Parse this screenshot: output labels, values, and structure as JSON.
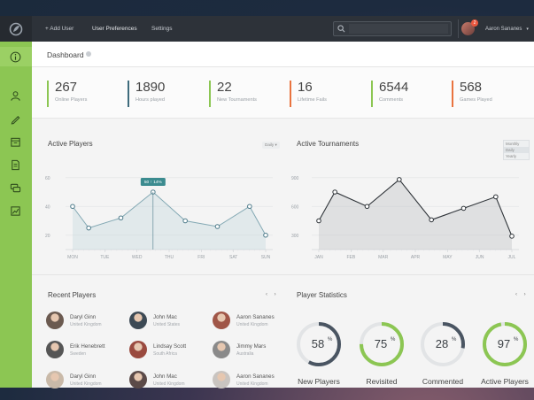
{
  "topbar": {
    "nav": [
      "+ Add User",
      "User Preferences",
      "Settings"
    ],
    "search_placeholder": "",
    "user_name": "Aaron Sananes",
    "notification_count": "2"
  },
  "dashboard": {
    "title": "Dashboard"
  },
  "stats": [
    {
      "value": "267",
      "label": "Online Players",
      "color": "#8cc653"
    },
    {
      "value": "1890",
      "label": "Hours played",
      "color": "#3e6b7c"
    },
    {
      "value": "22",
      "label": "New Tournaments",
      "color": "#8cc653"
    },
    {
      "value": "16",
      "label": "Lifetime Fails",
      "color": "#e9733f"
    },
    {
      "value": "6544",
      "label": "Comments",
      "color": "#8cc653"
    },
    {
      "value": "568",
      "label": "Games Played",
      "color": "#e9733f"
    }
  ],
  "active_players": {
    "title": "Active Players",
    "filter": "Daily",
    "tooltip": "50 ↑ 14%",
    "chart_data": {
      "type": "area",
      "categories": [
        "MON",
        "TUE",
        "WED",
        "THU",
        "FRI",
        "SAT",
        "SUN"
      ],
      "x": [
        0,
        0.5,
        1.5,
        2.5,
        3.5,
        4.5,
        5.5,
        6
      ],
      "values": [
        40,
        25,
        32,
        50,
        30,
        26,
        40,
        20
      ],
      "yticks": [
        "60",
        "40",
        "20"
      ],
      "ylim": [
        10,
        66
      ],
      "grid": true
    }
  },
  "active_tournaments": {
    "title": "Active Tournaments",
    "filter_options": [
      "Monthly",
      "Daily",
      "Yearly"
    ],
    "chart_data": {
      "type": "area",
      "categories": [
        "JAN",
        "FEB",
        "MAR",
        "APR",
        "MAY",
        "JUN",
        "JUL"
      ],
      "x": [
        0,
        0.5,
        1.5,
        2.5,
        3.5,
        4.5,
        5.5,
        6
      ],
      "values": [
        450,
        750,
        600,
        880,
        460,
        580,
        700,
        290
      ],
      "yticks": [
        "900",
        "600",
        "300"
      ],
      "ylim": [
        150,
        990
      ],
      "grid": true
    }
  },
  "recent_players": {
    "title": "Recent Players",
    "nav": "‹ ›",
    "players": [
      {
        "name": "Daryl Ginn",
        "location": "United Kingdom",
        "color": "#6b5a50"
      },
      {
        "name": "John Mac",
        "location": "United States",
        "color": "#3d4a55"
      },
      {
        "name": "Aaron Sananes",
        "location": "United Kingdom",
        "color": "#a05648"
      },
      {
        "name": "Erik Henebrett",
        "location": "Sweden",
        "color": "#555555"
      },
      {
        "name": "Lindsay Scott",
        "location": "South Africa",
        "color": "#9a4a3f"
      },
      {
        "name": "Jimmy Mars",
        "location": "Australia",
        "color": "#8a8a8a"
      },
      {
        "name": "Daryl Ginn",
        "location": "United Kingdom",
        "color": "#c9b9a8"
      },
      {
        "name": "John Mac",
        "location": "United Kingdom",
        "color": "#5b4a48"
      },
      {
        "name": "Aaron Sananes",
        "location": "United Kingdom",
        "color": "#c9c4c0"
      }
    ]
  },
  "player_statistics": {
    "title": "Player Statistics",
    "nav": "‹ ›",
    "items": [
      {
        "value": "58",
        "unit": "%",
        "label": "New Players",
        "percent": 58,
        "color": "#4a5562"
      },
      {
        "value": "75",
        "unit": "%",
        "label": "Revisited",
        "percent": 75,
        "color": "#8cc653"
      },
      {
        "value": "28",
        "unit": "%",
        "label": "Commented",
        "percent": 28,
        "color": "#4a5562"
      },
      {
        "value": "97",
        "unit": "%",
        "label": "Active Players",
        "percent": 97,
        "color": "#8cc653"
      }
    ]
  }
}
